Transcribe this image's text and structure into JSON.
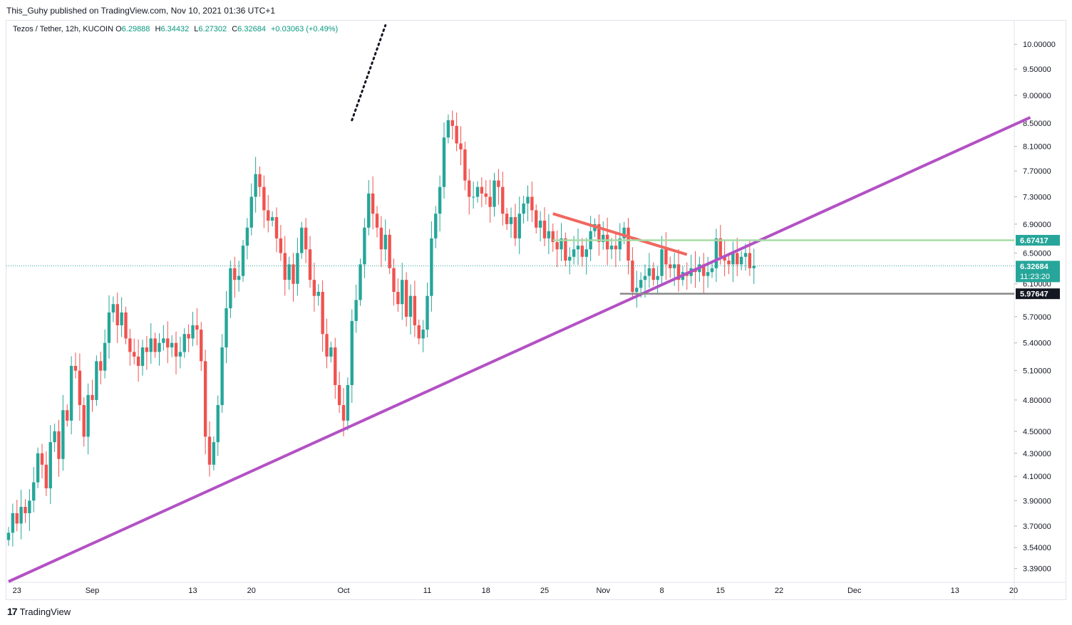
{
  "header": {
    "published_text": "This_Guhy published on TradingView.com, Nov 10, 2021 01:36 UTC+1"
  },
  "legend": {
    "symbol": "Tezos / Tether, 12h, KUCOIN",
    "open_label": "O",
    "open": "6.29888",
    "high_label": "H",
    "high": "6.34432",
    "low_label": "L",
    "low": "6.27302",
    "close_label": "C",
    "close": "6.32684",
    "change": "+0.03063 (+0.49%)"
  },
  "footer": {
    "brand": "TradingView",
    "icon": "tradingview-logo-icon"
  },
  "colors": {
    "up": "#26a69a",
    "down": "#ef5350",
    "trendline": "#b351c4",
    "resistance": "#f0675f",
    "green_line": "#a5dba5",
    "grey_line": "#888888",
    "price_tag": "#26a69a"
  },
  "price_tags": {
    "green_level": "6.67417",
    "current_price": "6.32684",
    "countdown": "11:23:20",
    "grey_level": "5.97647"
  },
  "chart_data": {
    "type": "candlestick",
    "y_scale": "log",
    "ylim": [
      3.3,
      10.5
    ],
    "y_ticks": [
      "10.00000",
      "9.50000",
      "9.00000",
      "8.50000",
      "8.10000",
      "7.70000",
      "7.30000",
      "6.90000",
      "6.50000",
      "6.10000",
      "5.70000",
      "5.40000",
      "5.10000",
      "4.80000",
      "4.50000",
      "4.30000",
      "4.10000",
      "3.90000",
      "3.70000",
      "3.54000",
      "3.39000"
    ],
    "x_ticks": [
      "23",
      "Sep",
      "13",
      "20",
      "Oct",
      "11",
      "18",
      "25",
      "Nov",
      "8",
      "15",
      "22",
      "Dec",
      "13",
      "20"
    ],
    "x_tick_dates": [
      "2021-08-23",
      "2021-09-01",
      "2021-09-13",
      "2021-09-20",
      "2021-10-01",
      "2021-10-11",
      "2021-10-18",
      "2021-10-25",
      "2021-11-01",
      "2021-11-08",
      "2021-11-15",
      "2021-11-22",
      "2021-12-01",
      "2021-12-13",
      "2021-12-20"
    ],
    "bar_interval": "12h",
    "first_bar": "2021-08-22",
    "closes": [
      3.65,
      3.8,
      3.72,
      3.85,
      3.8,
      3.9,
      4.05,
      4.3,
      4.2,
      4.0,
      4.4,
      4.5,
      4.25,
      4.7,
      4.6,
      5.15,
      5.1,
      4.75,
      4.45,
      4.85,
      4.8,
      5.2,
      5.1,
      5.4,
      5.75,
      5.85,
      5.6,
      5.75,
      5.45,
      5.3,
      5.25,
      5.15,
      5.35,
      5.3,
      5.45,
      5.3,
      5.4,
      5.45,
      5.35,
      5.4,
      5.25,
      5.3,
      5.5,
      5.45,
      5.6,
      5.55,
      5.2,
      4.45,
      4.2,
      4.4,
      4.75,
      5.35,
      5.8,
      6.3,
      6.15,
      6.2,
      6.6,
      6.85,
      7.3,
      7.65,
      7.45,
      7.1,
      6.95,
      7.0,
      6.7,
      6.5,
      6.15,
      6.35,
      6.1,
      6.5,
      6.85,
      6.55,
      6.15,
      5.95,
      6.0,
      5.5,
      5.25,
      5.35,
      4.95,
      4.75,
      4.6,
      4.95,
      5.65,
      5.9,
      6.35,
      6.85,
      7.35,
      7.05,
      6.85,
      6.55,
      6.75,
      6.3,
      6.0,
      5.85,
      6.15,
      5.7,
      5.95,
      5.6,
      5.45,
      5.55,
      5.95,
      6.7,
      7.05,
      7.45,
      8.25,
      8.55,
      8.45,
      8.15,
      8.05,
      7.55,
      7.3,
      7.3,
      7.45,
      7.35,
      7.3,
      7.15,
      7.55,
      7.45,
      7.05,
      6.9,
      7.0,
      6.7,
      7.05,
      7.2,
      7.3,
      7.1,
      6.85,
      6.95,
      6.7,
      6.8,
      6.65,
      6.55,
      6.7,
      6.4,
      6.45,
      6.55,
      6.6,
      6.45,
      6.55,
      6.8,
      6.9,
      6.65,
      6.75,
      6.55,
      6.6,
      6.55,
      6.7,
      6.85,
      6.4,
      6.0,
      6.05,
      6.15,
      6.2,
      6.3,
      6.15,
      6.2,
      6.55,
      6.35,
      6.3,
      6.35,
      6.15,
      6.25,
      6.2,
      6.3,
      6.25,
      6.35,
      6.2,
      6.25,
      6.3,
      6.7,
      6.45,
      6.4,
      6.35,
      6.5,
      6.35,
      6.45,
      6.5,
      6.3,
      6.33
    ],
    "series_annotations": [
      {
        "name": "ascending trendline",
        "color": "#b351c4",
        "from": [
          "2021-08-22",
          3.3
        ],
        "to": [
          "2021-12-22",
          8.6
        ]
      },
      {
        "name": "descending resistance",
        "color": "#f0675f",
        "from": [
          "2021-10-26",
          7.05
        ],
        "to": [
          "2021-11-11",
          6.48
        ]
      },
      {
        "name": "horizontal level",
        "color": "#a5dba5",
        "value": 6.67417,
        "from": "2021-10-26"
      },
      {
        "name": "horizontal level",
        "color": "#888888",
        "value": 5.97647,
        "from": "2021-11-03"
      },
      {
        "name": "dotted projection",
        "color": "#131722",
        "from": [
          "2021-10-02",
          8.55
        ],
        "to": [
          "2021-10-06",
          10.4
        ]
      }
    ],
    "grid": false,
    "xlabel": "",
    "ylabel": ""
  }
}
